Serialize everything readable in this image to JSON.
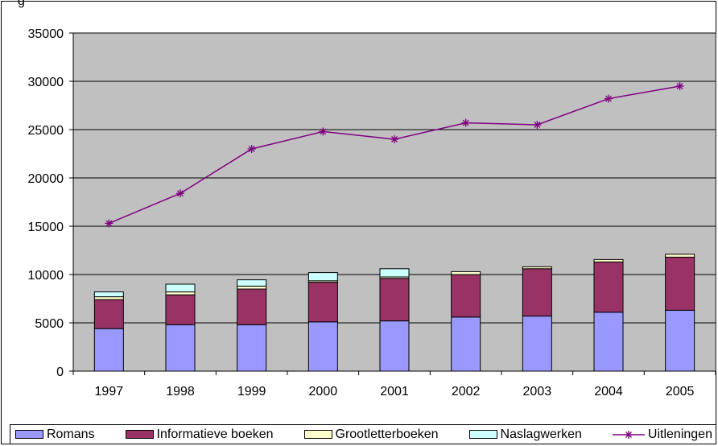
{
  "chart_data": {
    "type": "bar",
    "stacked": true,
    "categories": [
      "1997",
      "1998",
      "1999",
      "2000",
      "2001",
      "2002",
      "2003",
      "2004",
      "2005"
    ],
    "ylim": [
      0,
      35000
    ],
    "yticks": [
      "0",
      "5000",
      "10000",
      "15000",
      "20000",
      "25000",
      "30000",
      "35000"
    ],
    "grid": true,
    "legend_position": "bottom",
    "series": [
      {
        "name": "Romans",
        "type": "bar",
        "color": "#9999ff",
        "values": [
          4400,
          4800,
          4800,
          5100,
          5200,
          5600,
          5700,
          6100,
          6300
        ]
      },
      {
        "name": "Informatieve boeken",
        "type": "bar",
        "color": "#993366",
        "values": [
          3000,
          3100,
          3700,
          4100,
          4400,
          4400,
          4900,
          5200,
          5500
        ]
      },
      {
        "name": "Grootletterboeken",
        "type": "bar",
        "color": "#ffffcc",
        "values": [
          300,
          300,
          300,
          150,
          150,
          300,
          200,
          250,
          300
        ]
      },
      {
        "name": "Naslagwerken",
        "type": "bar",
        "color": "#ccffff",
        "values": [
          500,
          800,
          650,
          850,
          850,
          0,
          0,
          0,
          0
        ]
      },
      {
        "name": "Uitleningen",
        "type": "line",
        "color": "#800080",
        "values": [
          15300,
          18400,
          23000,
          24800,
          24000,
          25700,
          25500,
          28200,
          29500
        ]
      }
    ]
  },
  "colors": {
    "plot_background": "#c0c0c0",
    "gridline": "#000000"
  },
  "cut_title": "g"
}
